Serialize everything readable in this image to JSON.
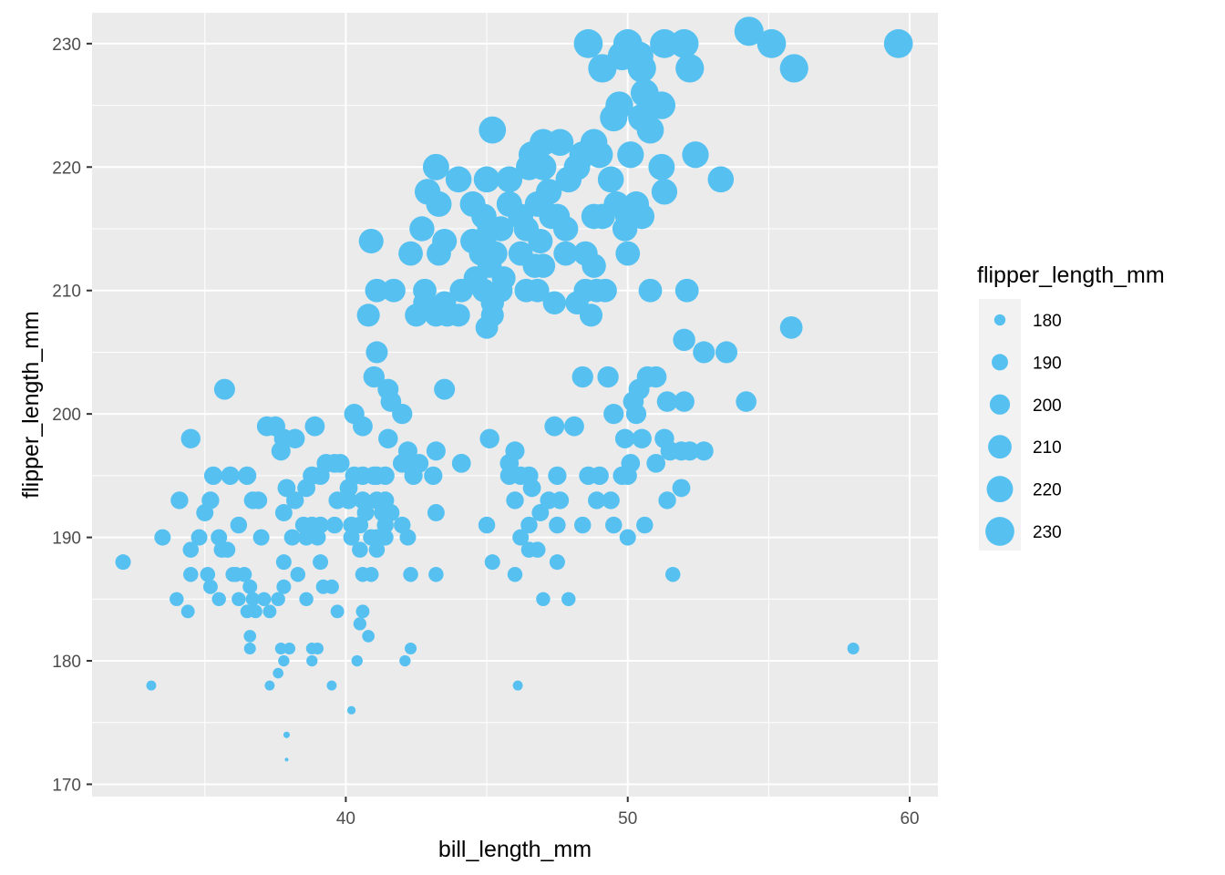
{
  "chart_data": {
    "type": "scatter",
    "xlabel": "bill_length_mm",
    "ylabel": "flipper_length_mm",
    "xlim": [
      31.0,
      61.0
    ],
    "ylim": [
      169.0,
      232.5
    ],
    "x_ticks": [
      40,
      50,
      60
    ],
    "x_minor_ticks": [
      35,
      45,
      55
    ],
    "y_ticks": [
      170,
      180,
      190,
      200,
      210,
      220,
      230
    ],
    "y_minor_ticks": [
      175,
      185,
      195,
      205,
      215,
      225
    ],
    "grid": true,
    "point_color": "#56C1F0",
    "panel_background": "#EBEBEB",
    "grid_color": "#FFFFFF",
    "legend": {
      "title": "flipper_length_mm",
      "placement": "right",
      "entries": [
        180,
        190,
        200,
        210,
        220,
        230
      ]
    },
    "size_range": [
      172,
      231
    ],
    "points": [
      [
        59.6,
        230
      ],
      [
        55.9,
        228
      ],
      [
        55.1,
        230
      ],
      [
        54.3,
        231
      ],
      [
        52.2,
        228
      ],
      [
        52.0,
        230
      ],
      [
        51.3,
        230
      ],
      [
        50.5,
        228
      ],
      [
        50.4,
        229
      ],
      [
        50.0,
        230
      ],
      [
        49.8,
        229
      ],
      [
        49.1,
        228
      ],
      [
        48.6,
        230
      ],
      [
        50.6,
        226
      ],
      [
        50.9,
        225
      ],
      [
        51.2,
        225
      ],
      [
        49.5,
        224
      ],
      [
        50.5,
        224
      ],
      [
        50.8,
        223
      ],
      [
        49.7,
        225
      ],
      [
        52.4,
        221
      ],
      [
        53.3,
        219
      ],
      [
        48.8,
        222
      ],
      [
        48.4,
        221
      ],
      [
        47.6,
        222
      ],
      [
        47.0,
        222
      ],
      [
        46.6,
        221
      ],
      [
        45.2,
        223
      ],
      [
        51.3,
        218
      ],
      [
        51.2,
        220
      ],
      [
        49.4,
        219
      ],
      [
        49.0,
        221
      ],
      [
        48.2,
        220
      ],
      [
        50.1,
        221
      ],
      [
        50.3,
        217
      ],
      [
        50.0,
        216
      ],
      [
        49.6,
        217
      ],
      [
        49.1,
        216
      ],
      [
        48.8,
        216
      ],
      [
        50.5,
        216
      ],
      [
        49.9,
        215
      ],
      [
        47.3,
        216
      ],
      [
        47.8,
        215
      ],
      [
        47.5,
        216
      ],
      [
        46.8,
        217
      ],
      [
        46.2,
        216
      ],
      [
        45.8,
        217
      ],
      [
        46.4,
        215
      ],
      [
        46.9,
        214
      ],
      [
        45.5,
        215
      ],
      [
        45.1,
        215
      ],
      [
        44.9,
        214
      ],
      [
        44.5,
        214
      ],
      [
        44.9,
        216
      ],
      [
        44.5,
        217
      ],
      [
        44.0,
        219
      ],
      [
        45.0,
        219
      ],
      [
        45.8,
        219
      ],
      [
        46.5,
        220
      ],
      [
        47.0,
        220
      ],
      [
        47.2,
        218
      ],
      [
        47.9,
        219
      ],
      [
        43.2,
        220
      ],
      [
        42.9,
        218
      ],
      [
        43.3,
        217
      ],
      [
        42.7,
        215
      ],
      [
        43.5,
        214
      ],
      [
        42.3,
        213
      ],
      [
        43.3,
        213
      ],
      [
        45.3,
        213
      ],
      [
        44.8,
        213
      ],
      [
        46.2,
        213
      ],
      [
        46.7,
        212
      ],
      [
        47.0,
        212
      ],
      [
        47.8,
        213
      ],
      [
        48.5,
        213
      ],
      [
        48.8,
        212
      ],
      [
        50.0,
        213
      ],
      [
        45.1,
        212
      ],
      [
        45.6,
        211
      ],
      [
        46.4,
        210
      ],
      [
        45.5,
        210
      ],
      [
        44.9,
        210
      ],
      [
        45.2,
        209
      ],
      [
        44.6,
        211
      ],
      [
        46.8,
        210
      ],
      [
        47.4,
        209
      ],
      [
        48.2,
        209
      ],
      [
        48.5,
        210
      ],
      [
        48.9,
        210
      ],
      [
        49.2,
        210
      ],
      [
        50.8,
        210
      ],
      [
        52.1,
        210
      ],
      [
        45.2,
        208
      ],
      [
        45.0,
        207
      ],
      [
        48.7,
        208
      ],
      [
        44.1,
        210
      ],
      [
        43.5,
        209
      ],
      [
        42.8,
        209
      ],
      [
        43.2,
        208
      ],
      [
        43.6,
        208
      ],
      [
        44.0,
        208
      ],
      [
        42.5,
        208
      ],
      [
        42.8,
        210
      ],
      [
        41.7,
        210
      ],
      [
        41.1,
        210
      ],
      [
        40.8,
        208
      ],
      [
        40.9,
        214
      ],
      [
        52.0,
        206
      ],
      [
        53.5,
        205
      ],
      [
        52.7,
        205
      ],
      [
        55.8,
        207
      ],
      [
        54.2,
        201
      ],
      [
        41.1,
        205
      ],
      [
        41.0,
        203
      ],
      [
        41.5,
        202
      ],
      [
        41.6,
        201
      ],
      [
        42.0,
        200
      ],
      [
        40.3,
        200
      ],
      [
        40.6,
        199
      ],
      [
        43.5,
        202
      ],
      [
        48.4,
        203
      ],
      [
        49.3,
        203
      ],
      [
        50.7,
        203
      ],
      [
        51.0,
        203
      ],
      [
        50.4,
        202
      ],
      [
        50.2,
        201
      ],
      [
        50.3,
        200
      ],
      [
        49.5,
        200
      ],
      [
        51.4,
        201
      ],
      [
        52.0,
        201
      ],
      [
        47.4,
        199
      ],
      [
        48.1,
        199
      ],
      [
        49.9,
        198
      ],
      [
        50.5,
        198
      ],
      [
        51.3,
        198
      ],
      [
        51.5,
        197
      ],
      [
        51.9,
        197
      ],
      [
        52.2,
        197
      ],
      [
        52.7,
        197
      ],
      [
        51.0,
        196
      ],
      [
        50.1,
        196
      ],
      [
        49.8,
        195
      ],
      [
        49.0,
        195
      ],
      [
        48.6,
        195
      ],
      [
        50.0,
        195
      ],
      [
        47.5,
        195
      ],
      [
        46.5,
        195
      ],
      [
        46.0,
        197
      ],
      [
        46.2,
        195
      ],
      [
        45.8,
        195
      ],
      [
        45.1,
        198
      ],
      [
        45.8,
        196
      ],
      [
        42.2,
        197
      ],
      [
        42.6,
        196
      ],
      [
        43.2,
        197
      ],
      [
        44.1,
        196
      ],
      [
        43.1,
        195
      ],
      [
        42.4,
        195
      ],
      [
        42.0,
        196
      ],
      [
        41.5,
        198
      ],
      [
        41.1,
        195
      ],
      [
        41.4,
        195
      ],
      [
        41.0,
        195
      ],
      [
        40.6,
        195
      ],
      [
        40.3,
        195
      ],
      [
        40.1,
        194
      ],
      [
        39.8,
        196
      ],
      [
        39.6,
        196
      ],
      [
        39.3,
        196
      ],
      [
        39.1,
        195
      ],
      [
        38.8,
        195
      ],
      [
        38.6,
        194
      ],
      [
        37.9,
        194
      ],
      [
        37.5,
        199
      ],
      [
        37.2,
        199
      ],
      [
        37.8,
        198
      ],
      [
        38.2,
        198
      ],
      [
        38.9,
        199
      ],
      [
        37.7,
        197
      ],
      [
        35.7,
        202
      ],
      [
        34.5,
        198
      ],
      [
        35.3,
        195
      ],
      [
        35.9,
        195
      ],
      [
        36.5,
        195
      ],
      [
        37.8,
        192
      ],
      [
        38.2,
        193
      ],
      [
        38.8,
        191
      ],
      [
        38.5,
        191
      ],
      [
        39.1,
        191
      ],
      [
        39.6,
        191
      ],
      [
        39.0,
        190
      ],
      [
        38.6,
        190
      ],
      [
        38.1,
        190
      ],
      [
        37.8,
        188
      ],
      [
        37.0,
        190
      ],
      [
        36.7,
        193
      ],
      [
        36.9,
        193
      ],
      [
        36.2,
        191
      ],
      [
        35.5,
        190
      ],
      [
        35.6,
        189
      ],
      [
        35.8,
        189
      ],
      [
        36.1,
        187
      ],
      [
        36.4,
        187
      ],
      [
        36.6,
        186
      ],
      [
        35.1,
        187
      ],
      [
        34.5,
        189
      ],
      [
        34.5,
        187
      ],
      [
        34.8,
        190
      ],
      [
        35.2,
        193
      ],
      [
        35.0,
        192
      ],
      [
        34.1,
        193
      ],
      [
        33.5,
        190
      ],
      [
        32.1,
        188
      ],
      [
        34.0,
        185
      ],
      [
        34.4,
        184
      ],
      [
        35.2,
        186
      ],
      [
        35.5,
        185
      ],
      [
        36.0,
        187
      ],
      [
        36.2,
        185
      ],
      [
        36.7,
        185
      ],
      [
        36.5,
        184
      ],
      [
        36.8,
        184
      ],
      [
        37.1,
        185
      ],
      [
        37.3,
        184
      ],
      [
        37.8,
        186
      ],
      [
        37.6,
        185
      ],
      [
        38.3,
        187
      ],
      [
        38.6,
        185
      ],
      [
        39.2,
        186
      ],
      [
        39.5,
        186
      ],
      [
        39.1,
        188
      ],
      [
        40.2,
        191
      ],
      [
        40.5,
        191
      ],
      [
        40.7,
        192
      ],
      [
        40.9,
        190
      ],
      [
        41.1,
        190
      ],
      [
        41.3,
        192
      ],
      [
        41.4,
        191
      ],
      [
        41.6,
        192
      ],
      [
        41.4,
        190
      ],
      [
        41.1,
        189
      ],
      [
        40.6,
        187
      ],
      [
        40.9,
        187
      ],
      [
        40.5,
        189
      ],
      [
        40.2,
        190
      ],
      [
        39.7,
        193
      ],
      [
        40.1,
        193
      ],
      [
        40.6,
        193
      ],
      [
        41.1,
        193
      ],
      [
        41.4,
        193
      ],
      [
        42.0,
        191
      ],
      [
        42.2,
        190
      ],
      [
        42.3,
        187
      ],
      [
        43.2,
        187
      ],
      [
        43.2,
        192
      ],
      [
        44.1,
        196
      ],
      [
        39.7,
        184
      ],
      [
        40.6,
        184
      ],
      [
        40.5,
        183
      ],
      [
        40.8,
        182
      ],
      [
        40.4,
        180
      ],
      [
        42.1,
        180
      ],
      [
        42.3,
        181
      ],
      [
        38.8,
        181
      ],
      [
        39.0,
        181
      ],
      [
        38.8,
        180
      ],
      [
        38.0,
        181
      ],
      [
        37.7,
        181
      ],
      [
        37.8,
        180
      ],
      [
        37.6,
        179
      ],
      [
        37.3,
        178
      ],
      [
        36.6,
        181
      ],
      [
        36.6,
        182
      ],
      [
        39.5,
        178
      ],
      [
        40.2,
        176
      ],
      [
        37.9,
        174
      ],
      [
        37.9,
        172
      ],
      [
        33.1,
        178
      ],
      [
        46.1,
        178
      ],
      [
        58.0,
        181
      ],
      [
        47.0,
        185
      ],
      [
        46.0,
        187
      ],
      [
        45.2,
        188
      ],
      [
        46.2,
        190
      ],
      [
        46.5,
        189
      ],
      [
        46.8,
        189
      ],
      [
        47.5,
        188
      ],
      [
        47.9,
        185
      ],
      [
        45.0,
        191
      ],
      [
        46.5,
        191
      ],
      [
        46.9,
        192
      ],
      [
        47.5,
        191
      ],
      [
        47.2,
        193
      ],
      [
        46.0,
        193
      ],
      [
        46.6,
        194
      ],
      [
        47.6,
        193
      ],
      [
        48.4,
        191
      ],
      [
        49.5,
        191
      ],
      [
        51.6,
        187
      ],
      [
        51.4,
        193
      ],
      [
        51.9,
        194
      ],
      [
        50.6,
        191
      ],
      [
        50.0,
        190
      ],
      [
        49.4,
        193
      ],
      [
        48.9,
        193
      ]
    ]
  }
}
